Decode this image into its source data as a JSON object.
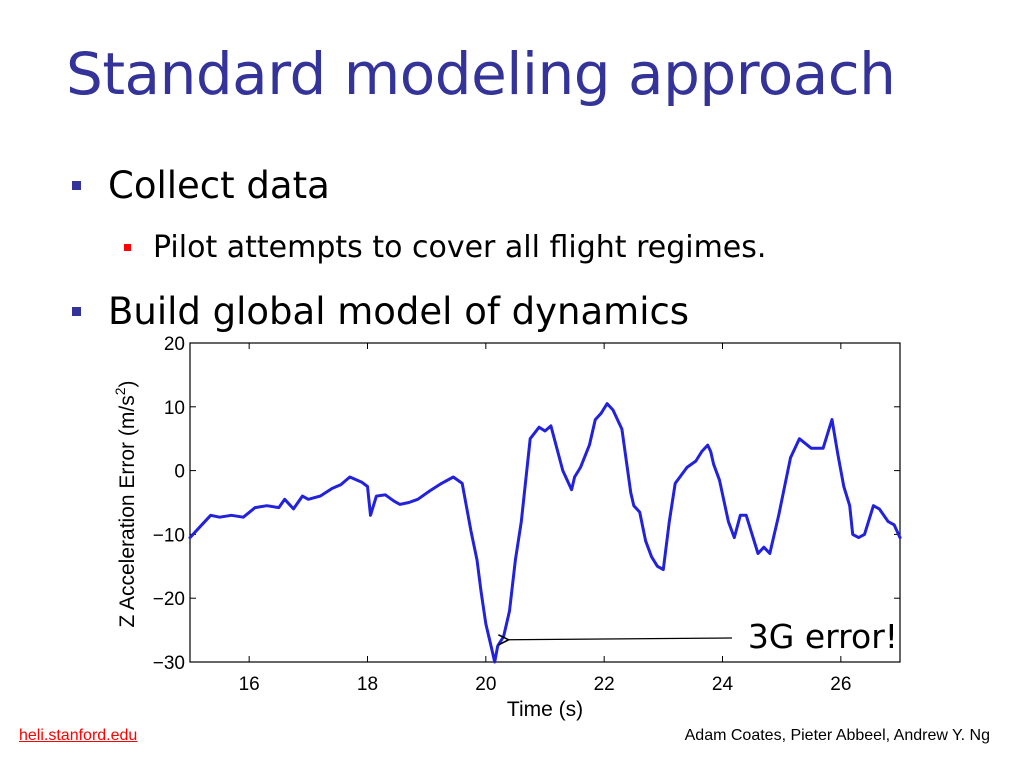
{
  "slide": {
    "title": "Standard modeling approach",
    "bullets": [
      {
        "text": "Collect data",
        "level": 1
      },
      {
        "text": "Pilot attempts to cover all flight regimes.",
        "level": 2
      },
      {
        "text": "Build global model of dynamics",
        "level": 1
      }
    ]
  },
  "colors": {
    "title": "#333399",
    "bullet_level1": "#333399",
    "bullet_level2": "#ff0000",
    "series": "#2222dd",
    "link": "#ff0000"
  },
  "chart_data": {
    "type": "line",
    "title": "",
    "xlabel": "Time (s)",
    "ylabel": "Z Acceleration Error (m/s",
    "ylabel_superscript": "2",
    "ylabel_suffix": ")",
    "xlim": [
      15,
      27
    ],
    "ylim": [
      -30,
      20
    ],
    "xticks": [
      16,
      18,
      20,
      22,
      24,
      26
    ],
    "yticks": [
      -30,
      -20,
      -10,
      0,
      10,
      20
    ],
    "ytick_labels": [
      "−30",
      "−20",
      "−10",
      "0",
      "10",
      "20"
    ],
    "grid": false,
    "series": [
      {
        "x": [
          15.0,
          15.2,
          15.35,
          15.5,
          15.7,
          15.9,
          16.1,
          16.3,
          16.5,
          16.6,
          16.75,
          16.9,
          17.0,
          17.2,
          17.4,
          17.55,
          17.7,
          17.9,
          18.0,
          18.05,
          18.15,
          18.3,
          18.45,
          18.55,
          18.7,
          18.85,
          19.05,
          19.25,
          19.45,
          19.6,
          19.75,
          19.85,
          19.92,
          20.0,
          20.05,
          20.1,
          20.15,
          20.2,
          20.3,
          20.4,
          20.5,
          20.6,
          20.75,
          20.9,
          21.0,
          21.1,
          21.3,
          21.45,
          21.5,
          21.6,
          21.75,
          21.85,
          21.95,
          22.05,
          22.15,
          22.3,
          22.45,
          22.5,
          22.6,
          22.7,
          22.8,
          22.9,
          23.0,
          23.1,
          23.2,
          23.4,
          23.55,
          23.65,
          23.75,
          23.8,
          23.85,
          23.95,
          24.1,
          24.2,
          24.3,
          24.4,
          24.5,
          24.6,
          24.7,
          24.8,
          24.95,
          25.05,
          25.15,
          25.3,
          25.5,
          25.7,
          25.8,
          25.85,
          25.95,
          26.05,
          26.15,
          26.2,
          26.3,
          26.4,
          26.55,
          26.65,
          26.8,
          26.9,
          27.0
        ],
        "y": [
          -10.5,
          -8.5,
          -7.0,
          -7.3,
          -7.0,
          -7.3,
          -5.8,
          -5.5,
          -5.8,
          -4.5,
          -6.0,
          -4.0,
          -4.5,
          -4.0,
          -2.8,
          -2.2,
          -1.0,
          -1.8,
          -2.5,
          -7.0,
          -4.0,
          -3.8,
          -4.8,
          -5.3,
          -5.0,
          -4.5,
          -3.2,
          -2.0,
          -1.0,
          -2.0,
          -9.5,
          -14.0,
          -19.0,
          -24.0,
          -26.0,
          -28.0,
          -30.0,
          -27.5,
          -26.0,
          -22.0,
          -14.0,
          -8.0,
          5.0,
          6.8,
          6.2,
          7.0,
          0.0,
          -3.0,
          -1.0,
          0.5,
          4.0,
          8.0,
          9.0,
          10.5,
          9.5,
          6.5,
          -3.5,
          -5.5,
          -6.5,
          -11.0,
          -13.5,
          -15.0,
          -15.5,
          -8.0,
          -2.0,
          0.5,
          1.5,
          3.0,
          4.0,
          3.0,
          1.0,
          -1.5,
          -8.0,
          -10.5,
          -7.0,
          -7.0,
          -10.0,
          -13.0,
          -12.0,
          -13.0,
          -7.0,
          -2.5,
          2.0,
          5.0,
          3.5,
          3.5,
          6.5,
          8.0,
          2.5,
          -2.5,
          -5.5,
          -10.0,
          -10.5,
          -10.0,
          -5.5,
          -6.0,
          -8.0,
          -8.5,
          -10.5
        ]
      }
    ],
    "annotation": {
      "text": "3G error!",
      "x": 20.25,
      "y": -26.2
    }
  },
  "footer": {
    "link": "heli.stanford.edu",
    "credit": "Adam Coates, Pieter Abbeel, Andrew Y. Ng"
  }
}
